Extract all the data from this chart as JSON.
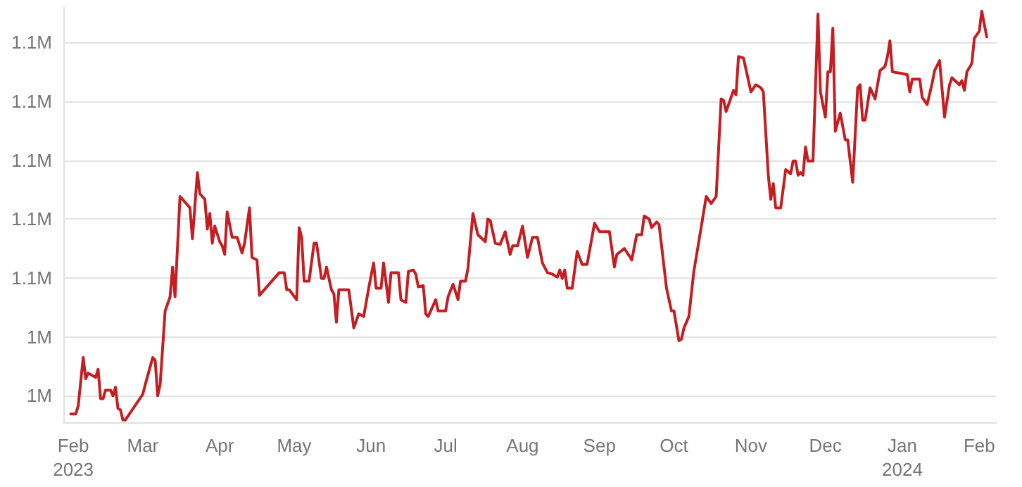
{
  "chart_data": {
    "type": "line",
    "x": [
      "2023-01-31",
      "2023-02-02",
      "2023-02-03",
      "2023-02-05",
      "2023-02-06",
      "2023-02-07",
      "2023-02-10",
      "2023-02-11",
      "2023-02-12",
      "2023-02-13",
      "2023-02-14",
      "2023-02-16",
      "2023-02-17",
      "2023-02-18",
      "2023-02-19",
      "2023-02-20",
      "2023-02-21",
      "2023-02-22",
      "2023-03-01",
      "2023-03-02",
      "2023-03-05",
      "2023-03-06",
      "2023-03-07",
      "2023-03-08",
      "2023-03-10",
      "2023-03-12",
      "2023-03-13",
      "2023-03-14",
      "2023-03-16",
      "2023-03-20",
      "2023-03-21",
      "2023-03-23",
      "2023-03-24",
      "2023-03-26",
      "2023-03-27",
      "2023-03-28",
      "2023-03-29",
      "2023-03-30",
      "2023-04-01",
      "2023-04-02",
      "2023-04-03",
      "2023-04-04",
      "2023-04-06",
      "2023-04-08",
      "2023-04-10",
      "2023-04-11",
      "2023-04-13",
      "2023-04-14",
      "2023-04-16",
      "2023-04-17",
      "2023-04-25",
      "2023-04-27",
      "2023-04-28",
      "2023-04-29",
      "2023-05-02",
      "2023-05-03",
      "2023-05-04",
      "2023-05-05",
      "2023-05-07",
      "2023-05-09",
      "2023-05-10",
      "2023-05-12",
      "2023-05-13",
      "2023-05-14",
      "2023-05-16",
      "2023-05-17",
      "2023-05-18",
      "2023-05-19",
      "2023-05-23",
      "2023-05-25",
      "2023-05-27",
      "2023-05-29",
      "2023-05-31",
      "2023-06-02",
      "2023-06-03",
      "2023-06-05",
      "2023-06-06",
      "2023-06-08",
      "2023-06-09",
      "2023-06-12",
      "2023-06-13",
      "2023-06-15",
      "2023-06-16",
      "2023-06-18",
      "2023-06-19",
      "2023-06-20",
      "2023-06-22",
      "2023-06-23",
      "2023-06-24",
      "2023-06-27",
      "2023-06-28",
      "2023-07-01",
      "2023-07-02",
      "2023-07-04",
      "2023-07-06",
      "2023-07-07",
      "2023-07-09",
      "2023-07-10",
      "2023-07-12",
      "2023-07-14",
      "2023-07-17",
      "2023-07-18",
      "2023-07-19",
      "2023-07-21",
      "2023-07-23",
      "2023-07-25",
      "2023-07-27",
      "2023-07-28",
      "2023-07-30",
      "2023-08-01",
      "2023-08-03",
      "2023-08-05",
      "2023-08-07",
      "2023-08-09",
      "2023-08-11",
      "2023-08-13",
      "2023-08-15",
      "2023-08-16",
      "2023-08-17",
      "2023-08-18",
      "2023-08-19",
      "2023-08-21",
      "2023-08-23",
      "2023-08-25",
      "2023-08-27",
      "2023-08-30",
      "2023-09-01",
      "2023-09-05",
      "2023-09-07",
      "2023-09-08",
      "2023-09-11",
      "2023-09-13",
      "2023-09-14",
      "2023-09-16",
      "2023-09-18",
      "2023-09-19",
      "2023-09-21",
      "2023-09-22",
      "2023-09-24",
      "2023-09-25",
      "2023-09-26",
      "2023-09-28",
      "2023-09-30",
      "2023-10-01",
      "2023-10-03",
      "2023-10-04",
      "2023-10-05",
      "2023-10-07",
      "2023-10-09",
      "2023-10-11",
      "2023-10-14",
      "2023-10-16",
      "2023-10-18",
      "2023-10-20",
      "2023-10-21",
      "2023-10-22",
      "2023-10-25",
      "2023-10-26",
      "2023-10-27",
      "2023-10-29",
      "2023-11-01",
      "2023-11-03",
      "2023-11-05",
      "2023-11-06",
      "2023-11-08",
      "2023-11-09",
      "2023-11-10",
      "2023-11-11",
      "2023-11-13",
      "2023-11-15",
      "2023-11-17",
      "2023-11-18",
      "2023-11-19",
      "2023-11-20",
      "2023-11-21",
      "2023-11-22",
      "2023-11-23",
      "2023-11-24",
      "2023-11-26",
      "2023-11-28",
      "2023-11-29",
      "2023-12-01",
      "2023-12-02",
      "2023-12-03",
      "2023-12-04",
      "2023-12-05",
      "2023-12-07",
      "2023-12-09",
      "2023-12-10",
      "2023-12-12",
      "2023-12-14",
      "2023-12-15",
      "2023-12-16",
      "2023-12-17",
      "2023-12-19",
      "2023-12-21",
      "2023-12-23",
      "2023-12-25",
      "2023-12-26",
      "2023-12-27",
      "2023-12-28",
      "2024-01-01",
      "2024-01-03",
      "2024-01-04",
      "2024-01-05",
      "2024-01-08",
      "2024-01-09",
      "2024-01-11",
      "2024-01-13",
      "2024-01-14",
      "2024-01-16",
      "2024-01-18",
      "2024-01-20",
      "2024-01-21",
      "2024-01-24",
      "2024-01-25",
      "2024-01-26",
      "2024-01-27",
      "2024-01-29",
      "2024-01-30",
      "2024-02-01",
      "2024-02-02",
      "2024-02-04"
    ],
    "series": [
      {
        "color": "#c41e22",
        "values": [
          1.0138,
          1.0138,
          1.0166,
          1.033,
          1.0258,
          1.0277,
          1.0262,
          1.029,
          1.019,
          1.019,
          1.0219,
          1.0219,
          1.02,
          1.0229,
          1.0157,
          1.0152,
          1.0118,
          1.0118,
          1.0205,
          1.0238,
          1.033,
          1.032,
          1.02,
          1.0238,
          1.0488,
          1.0536,
          1.0637,
          1.0536,
          1.0877,
          1.0838,
          1.0733,
          1.0958,
          1.0886,
          1.0867,
          1.0766,
          1.0819,
          1.0718,
          1.0776,
          1.0723,
          1.0709,
          1.068,
          1.0824,
          1.0738,
          1.0738,
          1.0685,
          1.0718,
          1.0838,
          1.067,
          1.0661,
          1.0541,
          1.0618,
          1.0618,
          1.056,
          1.056,
          1.0526,
          1.0771,
          1.0738,
          1.0589,
          1.0589,
          1.0718,
          1.0718,
          1.0598,
          1.0598,
          1.0637,
          1.056,
          1.0546,
          1.045,
          1.056,
          1.056,
          1.043,
          1.0478,
          1.0469,
          1.0565,
          1.0651,
          1.0565,
          1.0565,
          1.0651,
          1.0517,
          1.0618,
          1.0618,
          1.0526,
          1.0517,
          1.0622,
          1.0627,
          1.0613,
          1.057,
          1.0574,
          1.0478,
          1.0469,
          1.0526,
          1.0488,
          1.0488,
          1.0536,
          1.0579,
          1.0526,
          1.0589,
          1.0589,
          1.0632,
          1.0819,
          1.0747,
          1.0723,
          1.08,
          1.0795,
          1.0718,
          1.0714,
          1.0757,
          1.068,
          1.0709,
          1.0709,
          1.0776,
          1.067,
          1.0738,
          1.0738,
          1.0651,
          1.0618,
          1.0613,
          1.0603,
          1.0627,
          1.0598,
          1.0627,
          1.0565,
          1.0565,
          1.069,
          1.0646,
          1.0646,
          1.0786,
          1.0757,
          1.0757,
          1.0637,
          1.068,
          1.07,
          1.0675,
          1.0661,
          1.0747,
          1.0747,
          1.081,
          1.08,
          1.0771,
          1.079,
          1.0781,
          1.0709,
          1.0565,
          1.0488,
          1.0488,
          1.0387,
          1.0392,
          1.043,
          1.0469,
          1.0622,
          1.0723,
          1.0877,
          1.0853,
          1.0877,
          1.1208,
          1.1203,
          1.1165,
          1.1237,
          1.1222,
          1.1352,
          1.1347,
          1.1232,
          1.1256,
          1.1246,
          1.1232,
          1.0949,
          1.0867,
          1.092,
          1.0838,
          1.0838,
          1.0968,
          1.0954,
          1.0997,
          1.0997,
          1.0949,
          1.0958,
          1.0949,
          1.1045,
          1.0997,
          1.0997,
          1.1496,
          1.1232,
          1.1146,
          1.13,
          1.13,
          1.1448,
          1.1098,
          1.116,
          1.1069,
          1.1069,
          1.0925,
          1.1246,
          1.1256,
          1.1136,
          1.1136,
          1.1246,
          1.1208,
          1.1304,
          1.1318,
          1.1352,
          1.1405,
          1.13,
          1.1294,
          1.129,
          1.1232,
          1.1275,
          1.1275,
          1.1213,
          1.1189,
          1.1261,
          1.1304,
          1.1338,
          1.1146,
          1.1256,
          1.128,
          1.1256,
          1.127,
          1.1237,
          1.13,
          1.1328,
          1.1414,
          1.1438,
          1.1506,
          1.1419
        ]
      }
    ],
    "xlim": [
      "2023-01-28",
      "2024-02-08"
    ],
    "xticks": [
      {
        "value": "2023-02-01",
        "label": "Feb\n2023"
      },
      {
        "value": "2023-03-01",
        "label": "Mar"
      },
      {
        "value": "2023-04-01",
        "label": "Apr"
      },
      {
        "value": "2023-05-01",
        "label": "May"
      },
      {
        "value": "2023-06-01",
        "label": "Jun"
      },
      {
        "value": "2023-07-01",
        "label": "Jul"
      },
      {
        "value": "2023-08-01",
        "label": "Aug"
      },
      {
        "value": "2023-09-01",
        "label": "Sep"
      },
      {
        "value": "2023-10-01",
        "label": "Oct"
      },
      {
        "value": "2023-11-01",
        "label": "Nov"
      },
      {
        "value": "2023-12-01",
        "label": "Dec"
      },
      {
        "value": "2024-01-01",
        "label": "Jan\n2024"
      },
      {
        "value": "2024-02-01",
        "label": "Feb"
      }
    ],
    "ylim": [
      1.011,
      1.152
    ],
    "yticks": [
      {
        "value": 1.02,
        "label": "1M"
      },
      {
        "value": 1.04,
        "label": "1M"
      },
      {
        "value": 1.06,
        "label": "1.1M"
      },
      {
        "value": 1.08,
        "label": "1.1M"
      },
      {
        "value": 1.1,
        "label": "1.1M"
      },
      {
        "value": 1.12,
        "label": "1.1M"
      },
      {
        "value": 1.14,
        "label": "1.1M"
      }
    ],
    "grid": "y",
    "marker": "none",
    "line_style": "solid"
  }
}
